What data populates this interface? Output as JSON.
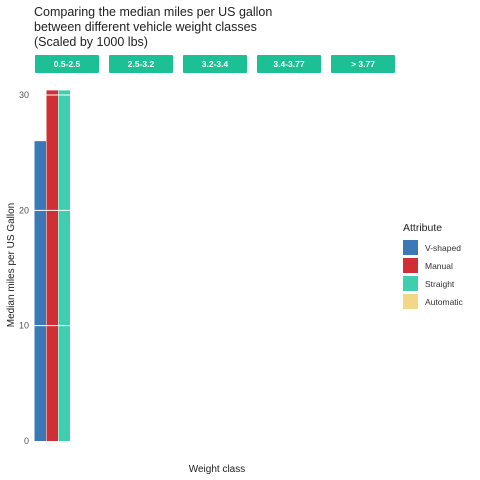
{
  "chart_data": {
    "type": "bar",
    "title": "Comparing the median miles per US gallon\nbetween different vehicle weight classes\n(Scaled by 1000 lbs)",
    "xlabel": "Weight class",
    "ylabel": "Median miles per US Gallon",
    "ylim": [
      0,
      30.4
    ],
    "yticks": [
      0,
      10,
      20,
      30
    ],
    "grid": true,
    "legend": {
      "title": "Attribute",
      "placement": "right"
    },
    "facets": [
      "0.5-2.5",
      "2.5-3.2",
      "3.2-3.4",
      "3.4-3.77",
      "> 3.77"
    ],
    "series": [
      {
        "name": "V-shaped",
        "color": "#3a78b6",
        "values": [
          26,
          null,
          null,
          null,
          null
        ]
      },
      {
        "name": "Manual",
        "color": "#cf2f35",
        "values": [
          30.4,
          null,
          null,
          null,
          null
        ]
      },
      {
        "name": "Straight",
        "color": "#3fcfae",
        "values": [
          30.4,
          null,
          null,
          null,
          null
        ]
      },
      {
        "name": "Automatic",
        "color": "#f2d886",
        "values": [
          null,
          null,
          null,
          null,
          null
        ]
      }
    ]
  }
}
